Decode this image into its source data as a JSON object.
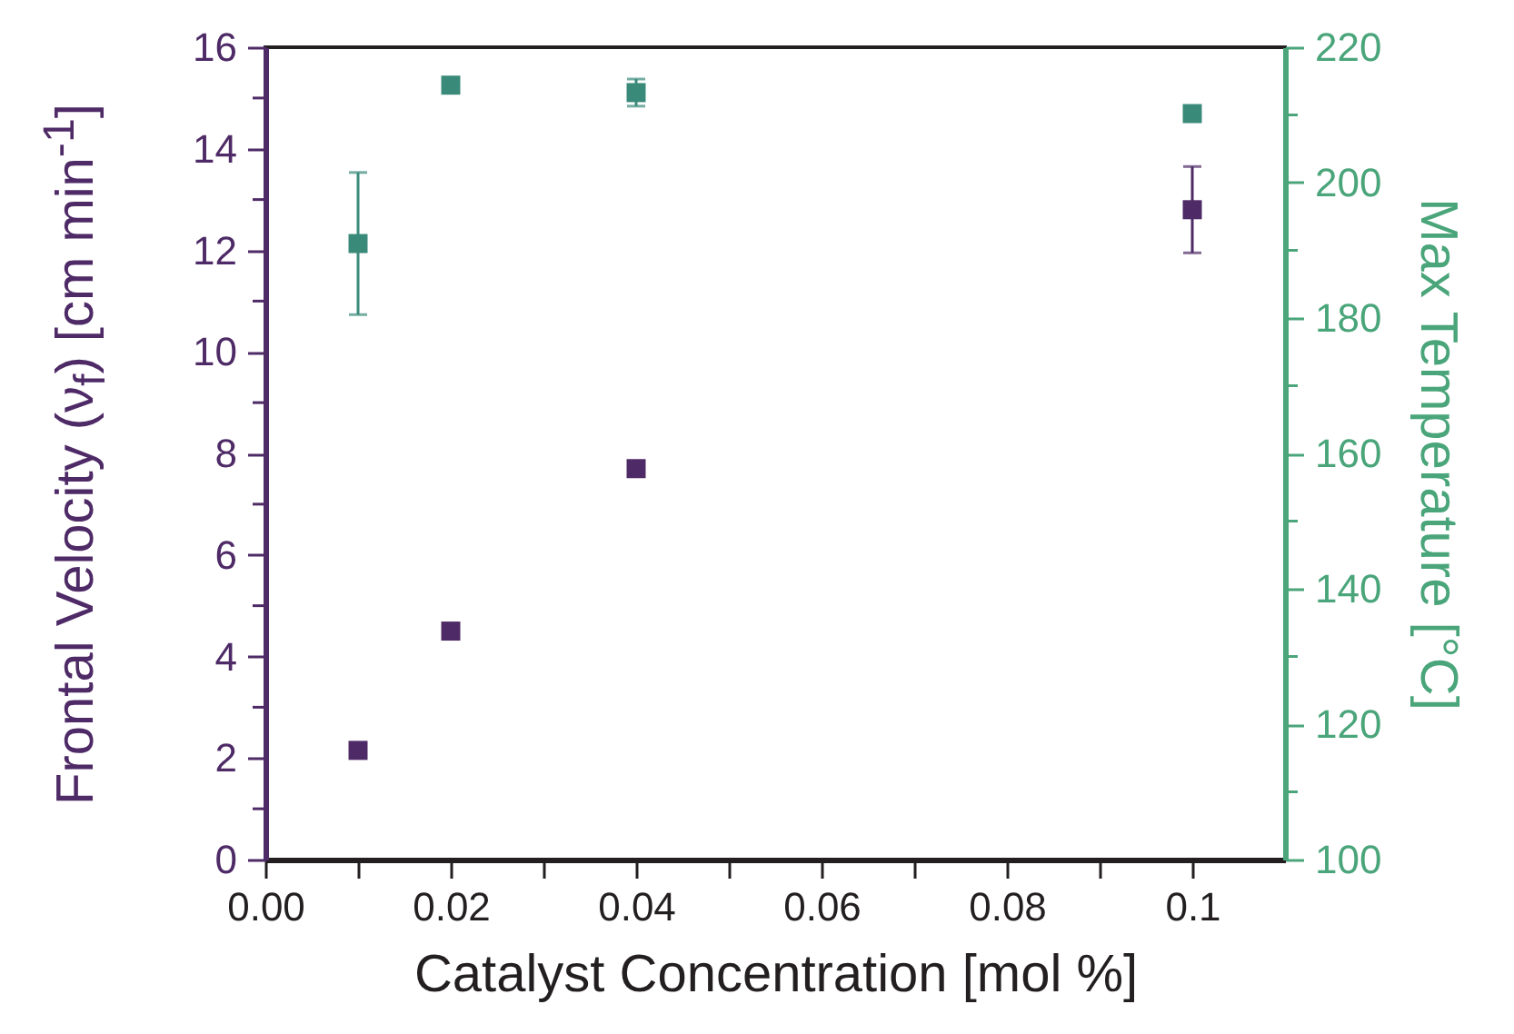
{
  "chart_data": {
    "type": "scatter",
    "xlabel": "Catalyst Concentration [mol %]",
    "ylabel": "Frontal Velocity (ν$_{f}$) [cm min$^{-1}$]",
    "y2label": "Max Temperature [°C]",
    "x": [
      0.01,
      0.02,
      0.04,
      0.1
    ],
    "series": [
      {
        "color": "#4e2a66",
        "values": [
          2.15,
          4.5,
          7.7,
          12.8
        ],
        "errors": [
          null,
          null,
          null,
          0.85
        ]
      },
      {
        "color": "#3a8a7a",
        "axis": "y2",
        "values": [
          191,
          214.4,
          213.3,
          210.2
        ],
        "errors": [
          10.5,
          null,
          2,
          null
        ]
      }
    ],
    "marker": "square",
    "grid": false,
    "xlim": [
      0,
      0.11
    ],
    "xticks": [
      {
        "value": 0,
        "label": "0.00"
      },
      {
        "value": 0.01,
        "label": null
      },
      {
        "value": 0.02,
        "label": "0.02"
      },
      {
        "value": 0.03,
        "label": null
      },
      {
        "value": 0.04,
        "label": "0.04"
      },
      {
        "value": 0.05,
        "label": null
      },
      {
        "value": 0.06,
        "label": "0.06"
      },
      {
        "value": 0.07,
        "label": null
      },
      {
        "value": 0.08,
        "label": "0.08"
      },
      {
        "value": 0.09,
        "label": null
      },
      {
        "value": 0.1,
        "label": "0.1"
      }
    ],
    "ylim": [
      0,
      16
    ],
    "yticks": [
      0,
      {
        "value": 1,
        "label": null
      },
      2,
      {
        "value": 3,
        "label": null
      },
      4,
      {
        "value": 5,
        "label": null
      },
      6,
      {
        "value": 7,
        "label": null
      },
      8,
      {
        "value": 9,
        "label": null
      },
      10,
      {
        "value": 11,
        "label": null
      },
      12,
      {
        "value": 13,
        "label": null
      },
      14,
      {
        "value": 15,
        "label": null
      },
      16
    ],
    "y2lim": [
      100,
      220
    ],
    "y2ticks": [
      100,
      {
        "value": 110,
        "label": null
      },
      120,
      {
        "value": 130,
        "label": null
      },
      140,
      {
        "value": 150,
        "label": null
      },
      160,
      {
        "value": 170,
        "label": null
      },
      180,
      {
        "value": 190,
        "label": null
      },
      200,
      {
        "value": 210,
        "label": null
      },
      220
    ]
  }
}
